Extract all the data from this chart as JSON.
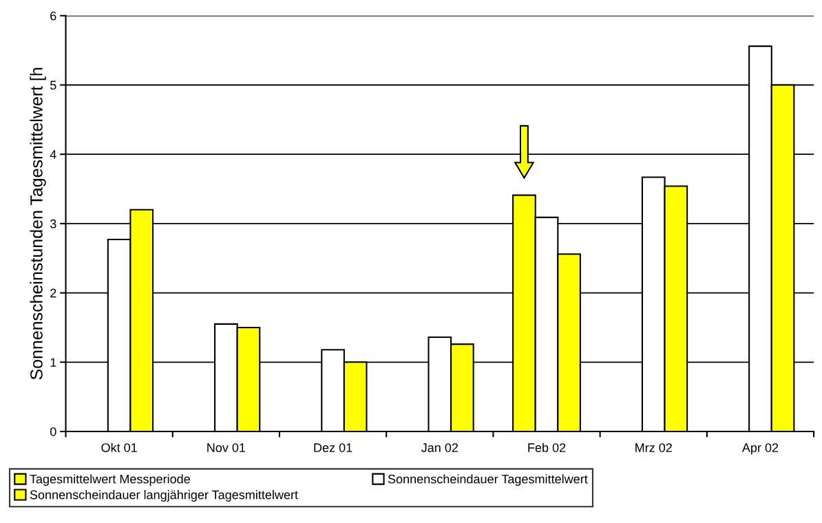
{
  "chart_data": {
    "type": "bar",
    "ylabel": "Sonnenscheinstunden Tagesmittelwert [h",
    "categories": [
      "Okt 01",
      "Nov 01",
      "Dez 01",
      "Jan 02",
      "Feb 02",
      "Mrz 02",
      "Apr 02"
    ],
    "series": [
      {
        "name": "Tagesmittelwert Messperiode",
        "color": "#ffff00",
        "values": [
          null,
          null,
          null,
          null,
          3.41,
          null,
          null
        ]
      },
      {
        "name": "Sonnenscheindauer Tagesmittelwert",
        "color": "#ffffff",
        "values": [
          2.77,
          1.55,
          1.18,
          1.36,
          3.09,
          3.67,
          5.56
        ]
      },
      {
        "name": "Sonnenscheindauer langjähriger Tagesmittelwert",
        "color": "#ffff00",
        "values": [
          3.2,
          1.5,
          1.0,
          1.26,
          2.56,
          3.54,
          5.0
        ]
      }
    ],
    "ylim": [
      0,
      6
    ],
    "yticks": [
      0,
      1,
      2,
      3,
      4,
      5,
      6
    ],
    "grid": "y",
    "legend": "bottom"
  }
}
